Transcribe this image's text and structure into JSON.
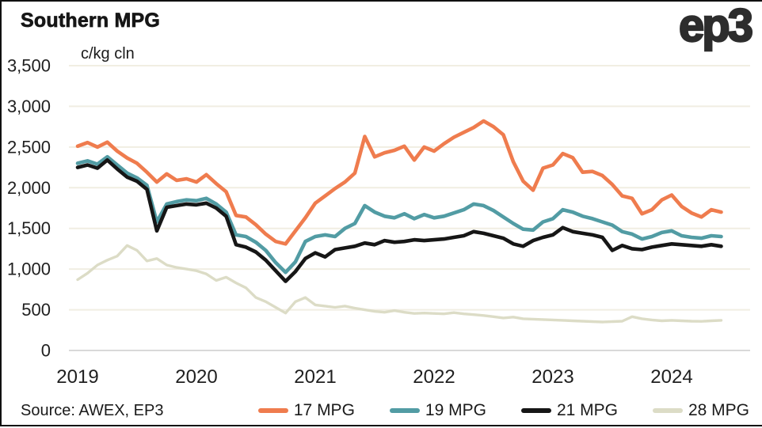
{
  "header": {
    "title": "Southern MPG",
    "logo": "ep3"
  },
  "footer": {
    "source": "Source: AWEX, EP3"
  },
  "colors": {
    "accent_orange": "#EF7C4E",
    "accent_teal": "#529CA4",
    "accent_black": "#161616",
    "accent_beige": "#DCDCC6",
    "gridline": "#F1EEE2",
    "zero_axis": "#D9D9D9",
    "text": "#1A1A1A"
  },
  "chart_data": {
    "type": "line",
    "title": "Southern MPG",
    "ylabel": "c/kg cln",
    "source": "Source: AWEX, EP3",
    "ylim": [
      0,
      3500
    ],
    "ytick_interval": 500,
    "yticks": [
      0,
      500,
      1000,
      1500,
      2000,
      2500,
      3000,
      3500
    ],
    "xticks": [
      2019,
      2020,
      2021,
      2022,
      2023,
      2024
    ],
    "x_range_shown": [
      2018.93,
      2024.66
    ],
    "grid": "horizontal-only",
    "legend_position": "bottom",
    "x": [
      2019.0,
      2019.083,
      2019.167,
      2019.25,
      2019.333,
      2019.417,
      2019.5,
      2019.583,
      2019.667,
      2019.75,
      2019.833,
      2019.917,
      2020.0,
      2020.083,
      2020.167,
      2020.25,
      2020.333,
      2020.417,
      2020.5,
      2020.583,
      2020.667,
      2020.75,
      2020.833,
      2020.917,
      2021.0,
      2021.083,
      2021.167,
      2021.25,
      2021.333,
      2021.417,
      2021.5,
      2021.583,
      2021.667,
      2021.75,
      2021.833,
      2021.917,
      2022.0,
      2022.083,
      2022.167,
      2022.25,
      2022.333,
      2022.417,
      2022.5,
      2022.583,
      2022.667,
      2022.75,
      2022.833,
      2022.917,
      2023.0,
      2023.083,
      2023.167,
      2023.25,
      2023.333,
      2023.417,
      2023.5,
      2023.583,
      2023.667,
      2023.75,
      2023.833,
      2023.917,
      2024.0,
      2024.083,
      2024.167,
      2024.25,
      2024.333,
      2024.417
    ],
    "series": [
      {
        "name": "17 MPG",
        "color": "#EF7C4E",
        "values": [
          2510,
          2555,
          2500,
          2560,
          2450,
          2365,
          2300,
          2190,
          2070,
          2170,
          2090,
          2110,
          2070,
          2160,
          2050,
          1950,
          1660,
          1640,
          1545,
          1430,
          1340,
          1310,
          1470,
          1630,
          1810,
          1900,
          1990,
          2070,
          2180,
          2630,
          2380,
          2430,
          2460,
          2510,
          2340,
          2500,
          2450,
          2540,
          2620,
          2680,
          2740,
          2820,
          2750,
          2650,
          2320,
          2080,
          1970,
          2240,
          2280,
          2420,
          2370,
          2190,
          2200,
          2150,
          2040,
          1900,
          1870,
          1680,
          1730,
          1850,
          1910,
          1770,
          1690,
          1640,
          1730,
          1700
        ]
      },
      {
        "name": "19 MPG",
        "color": "#529CA4",
        "values": [
          2300,
          2330,
          2290,
          2380,
          2280,
          2180,
          2120,
          2030,
          1580,
          1800,
          1830,
          1850,
          1840,
          1870,
          1800,
          1700,
          1420,
          1400,
          1330,
          1230,
          1080,
          960,
          1090,
          1340,
          1400,
          1420,
          1400,
          1500,
          1560,
          1780,
          1700,
          1650,
          1630,
          1680,
          1620,
          1670,
          1630,
          1650,
          1690,
          1730,
          1800,
          1780,
          1720,
          1640,
          1560,
          1490,
          1480,
          1580,
          1620,
          1730,
          1700,
          1650,
          1620,
          1580,
          1540,
          1460,
          1430,
          1370,
          1400,
          1450,
          1470,
          1410,
          1390,
          1380,
          1410,
          1400
        ]
      },
      {
        "name": "21 MPG",
        "color": "#161616",
        "values": [
          2250,
          2280,
          2240,
          2340,
          2230,
          2130,
          2080,
          1980,
          1470,
          1760,
          1780,
          1800,
          1790,
          1810,
          1750,
          1650,
          1300,
          1270,
          1210,
          1110,
          980,
          850,
          970,
          1130,
          1200,
          1150,
          1240,
          1260,
          1280,
          1320,
          1300,
          1350,
          1330,
          1340,
          1360,
          1350,
          1360,
          1370,
          1390,
          1410,
          1460,
          1440,
          1410,
          1380,
          1310,
          1280,
          1350,
          1390,
          1420,
          1510,
          1460,
          1440,
          1420,
          1390,
          1230,
          1290,
          1250,
          1240,
          1270,
          1290,
          1310,
          1300,
          1290,
          1280,
          1300,
          1280
        ]
      },
      {
        "name": "28 MPG",
        "color": "#DCDCC6",
        "values": [
          870,
          950,
          1050,
          1110,
          1160,
          1290,
          1230,
          1100,
          1130,
          1050,
          1020,
          1000,
          980,
          940,
          860,
          900,
          830,
          770,
          650,
          600,
          530,
          460,
          600,
          650,
          560,
          545,
          530,
          545,
          520,
          500,
          480,
          470,
          490,
          470,
          455,
          460,
          455,
          450,
          465,
          450,
          440,
          430,
          415,
          400,
          410,
          390,
          385,
          380,
          375,
          370,
          365,
          360,
          355,
          350,
          355,
          360,
          415,
          390,
          375,
          365,
          370,
          365,
          360,
          358,
          365,
          370
        ]
      }
    ]
  }
}
